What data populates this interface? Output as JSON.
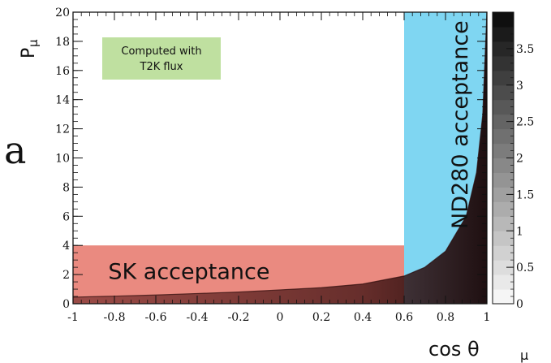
{
  "side_text": "a",
  "chart_data": {
    "type": "heatmap",
    "xlabel": "cos θ",
    "xlabel_sub": "μ",
    "ylabel": "P",
    "ylabel_sub": "μ",
    "xlim": [
      -1,
      1
    ],
    "ylim": [
      0,
      20
    ],
    "x_ticks": [
      "-1",
      "-0.8",
      "-0.6",
      "-0.4",
      "-0.2",
      "0",
      "0.2",
      "0.4",
      "0.6",
      "0.8",
      "1"
    ],
    "y_ticks": [
      "0",
      "2",
      "4",
      "6",
      "8",
      "10",
      "12",
      "14",
      "16",
      "18",
      "20"
    ],
    "colorbar": {
      "range": [
        0,
        4
      ],
      "ticks": [
        "0",
        "0.5",
        "1",
        "1.5",
        "2",
        "2.5",
        "3",
        "3.5"
      ]
    },
    "populated_boundary": [
      {
        "x": -1.0,
        "y": 0.45
      },
      {
        "x": -0.8,
        "y": 0.52
      },
      {
        "x": -0.6,
        "y": 0.6
      },
      {
        "x": -0.4,
        "y": 0.7
      },
      {
        "x": -0.2,
        "y": 0.8
      },
      {
        "x": 0.0,
        "y": 0.95
      },
      {
        "x": 0.2,
        "y": 1.1
      },
      {
        "x": 0.4,
        "y": 1.35
      },
      {
        "x": 0.6,
        "y": 1.9
      },
      {
        "x": 0.7,
        "y": 2.5
      },
      {
        "x": 0.8,
        "y": 3.6
      },
      {
        "x": 0.9,
        "y": 6.0
      },
      {
        "x": 0.95,
        "y": 9.0
      },
      {
        "x": 0.98,
        "y": 13.0
      },
      {
        "x": 1.0,
        "y": 20.0
      }
    ],
    "regions": [
      {
        "label": "SK acceptance",
        "x": [
          -1,
          0.6
        ],
        "y": [
          0,
          4
        ],
        "color": "#ea8a80"
      },
      {
        "label": "ND280 acceptance",
        "x": [
          0.6,
          1
        ],
        "y": [
          0,
          20
        ],
        "color": "#7fd6f2"
      }
    ],
    "annotation": "Computed with\nT2K flux",
    "annotation_lines": [
      "Computed with",
      "T2K flux"
    ],
    "annotation_color": "#bfe0a0"
  }
}
